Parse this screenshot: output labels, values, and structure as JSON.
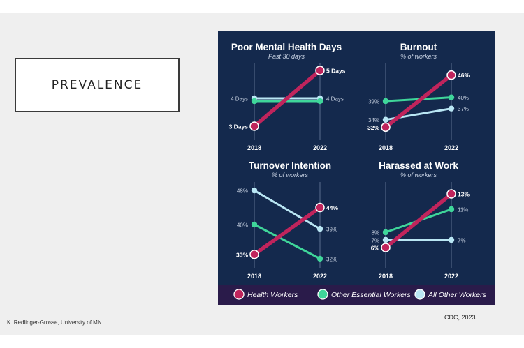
{
  "slide": {
    "title": "PREVALENCE",
    "footer_left": "K. Redlinger-Grosse, University of MN",
    "footer_right": "CDC, 2023"
  },
  "colors": {
    "background": "#14294d",
    "health": "#c0245c",
    "essential": "#3fd69a",
    "other": "#b9e6f4"
  },
  "legend": [
    {
      "name": "Health Workers",
      "color": "#c0245c"
    },
    {
      "name": "Other Essential Workers",
      "color": "#3fd69a"
    },
    {
      "name": "All Other Workers",
      "color": "#b9e6f4"
    }
  ],
  "chart_data": [
    {
      "type": "line",
      "title": "Poor Mental Health Days",
      "subtitle": "Past 30 days",
      "categories": [
        "2018",
        "2022"
      ],
      "ylim": [
        2.7,
        5.1
      ],
      "series": [
        {
          "name": "Health Workers",
          "values": [
            3,
            5
          ],
          "labels": [
            "3 Days",
            "5 Days"
          ]
        },
        {
          "name": "Other Essential Workers",
          "values": [
            3.9,
            3.9
          ],
          "labels": [
            "",
            ""
          ]
        },
        {
          "name": "All Other Workers",
          "values": [
            4,
            4
          ],
          "labels": [
            "4 Days",
            "4 Days"
          ]
        }
      ]
    },
    {
      "type": "line",
      "title": "Burnout",
      "subtitle": "% of workers",
      "categories": [
        "2018",
        "2022"
      ],
      "ylim": [
        30,
        48
      ],
      "series": [
        {
          "name": "Health Workers",
          "values": [
            32,
            46
          ],
          "labels": [
            "32%",
            "46%"
          ]
        },
        {
          "name": "Other Essential Workers",
          "values": [
            39,
            40
          ],
          "labels": [
            "39%",
            "40%"
          ]
        },
        {
          "name": "All Other Workers",
          "values": [
            34,
            37
          ],
          "labels": [
            "34%",
            "37%"
          ]
        }
      ]
    },
    {
      "type": "line",
      "title": "Turnover Intention",
      "subtitle": "% of workers",
      "categories": [
        "2018",
        "2022"
      ],
      "ylim": [
        31,
        49
      ],
      "series": [
        {
          "name": "Health Workers",
          "values": [
            33,
            44
          ],
          "labels": [
            "33%",
            "44%"
          ]
        },
        {
          "name": "Other Essential Workers",
          "values": [
            40,
            32
          ],
          "labels": [
            "40%",
            "32%"
          ]
        },
        {
          "name": "All Other Workers",
          "values": [
            48,
            39
          ],
          "labels": [
            "48%",
            "39%"
          ]
        }
      ]
    },
    {
      "type": "line",
      "title": "Harassed at Work",
      "subtitle": "% of workers",
      "categories": [
        "2018",
        "2022"
      ],
      "ylim": [
        4,
        14
      ],
      "series": [
        {
          "name": "Health Workers",
          "values": [
            6,
            13
          ],
          "labels": [
            "6%",
            "13%"
          ]
        },
        {
          "name": "Other Essential Workers",
          "values": [
            8,
            11
          ],
          "labels": [
            "8%",
            "11%"
          ]
        },
        {
          "name": "All Other Workers",
          "values": [
            7,
            7
          ],
          "labels": [
            "7%",
            "7%"
          ]
        }
      ]
    }
  ]
}
